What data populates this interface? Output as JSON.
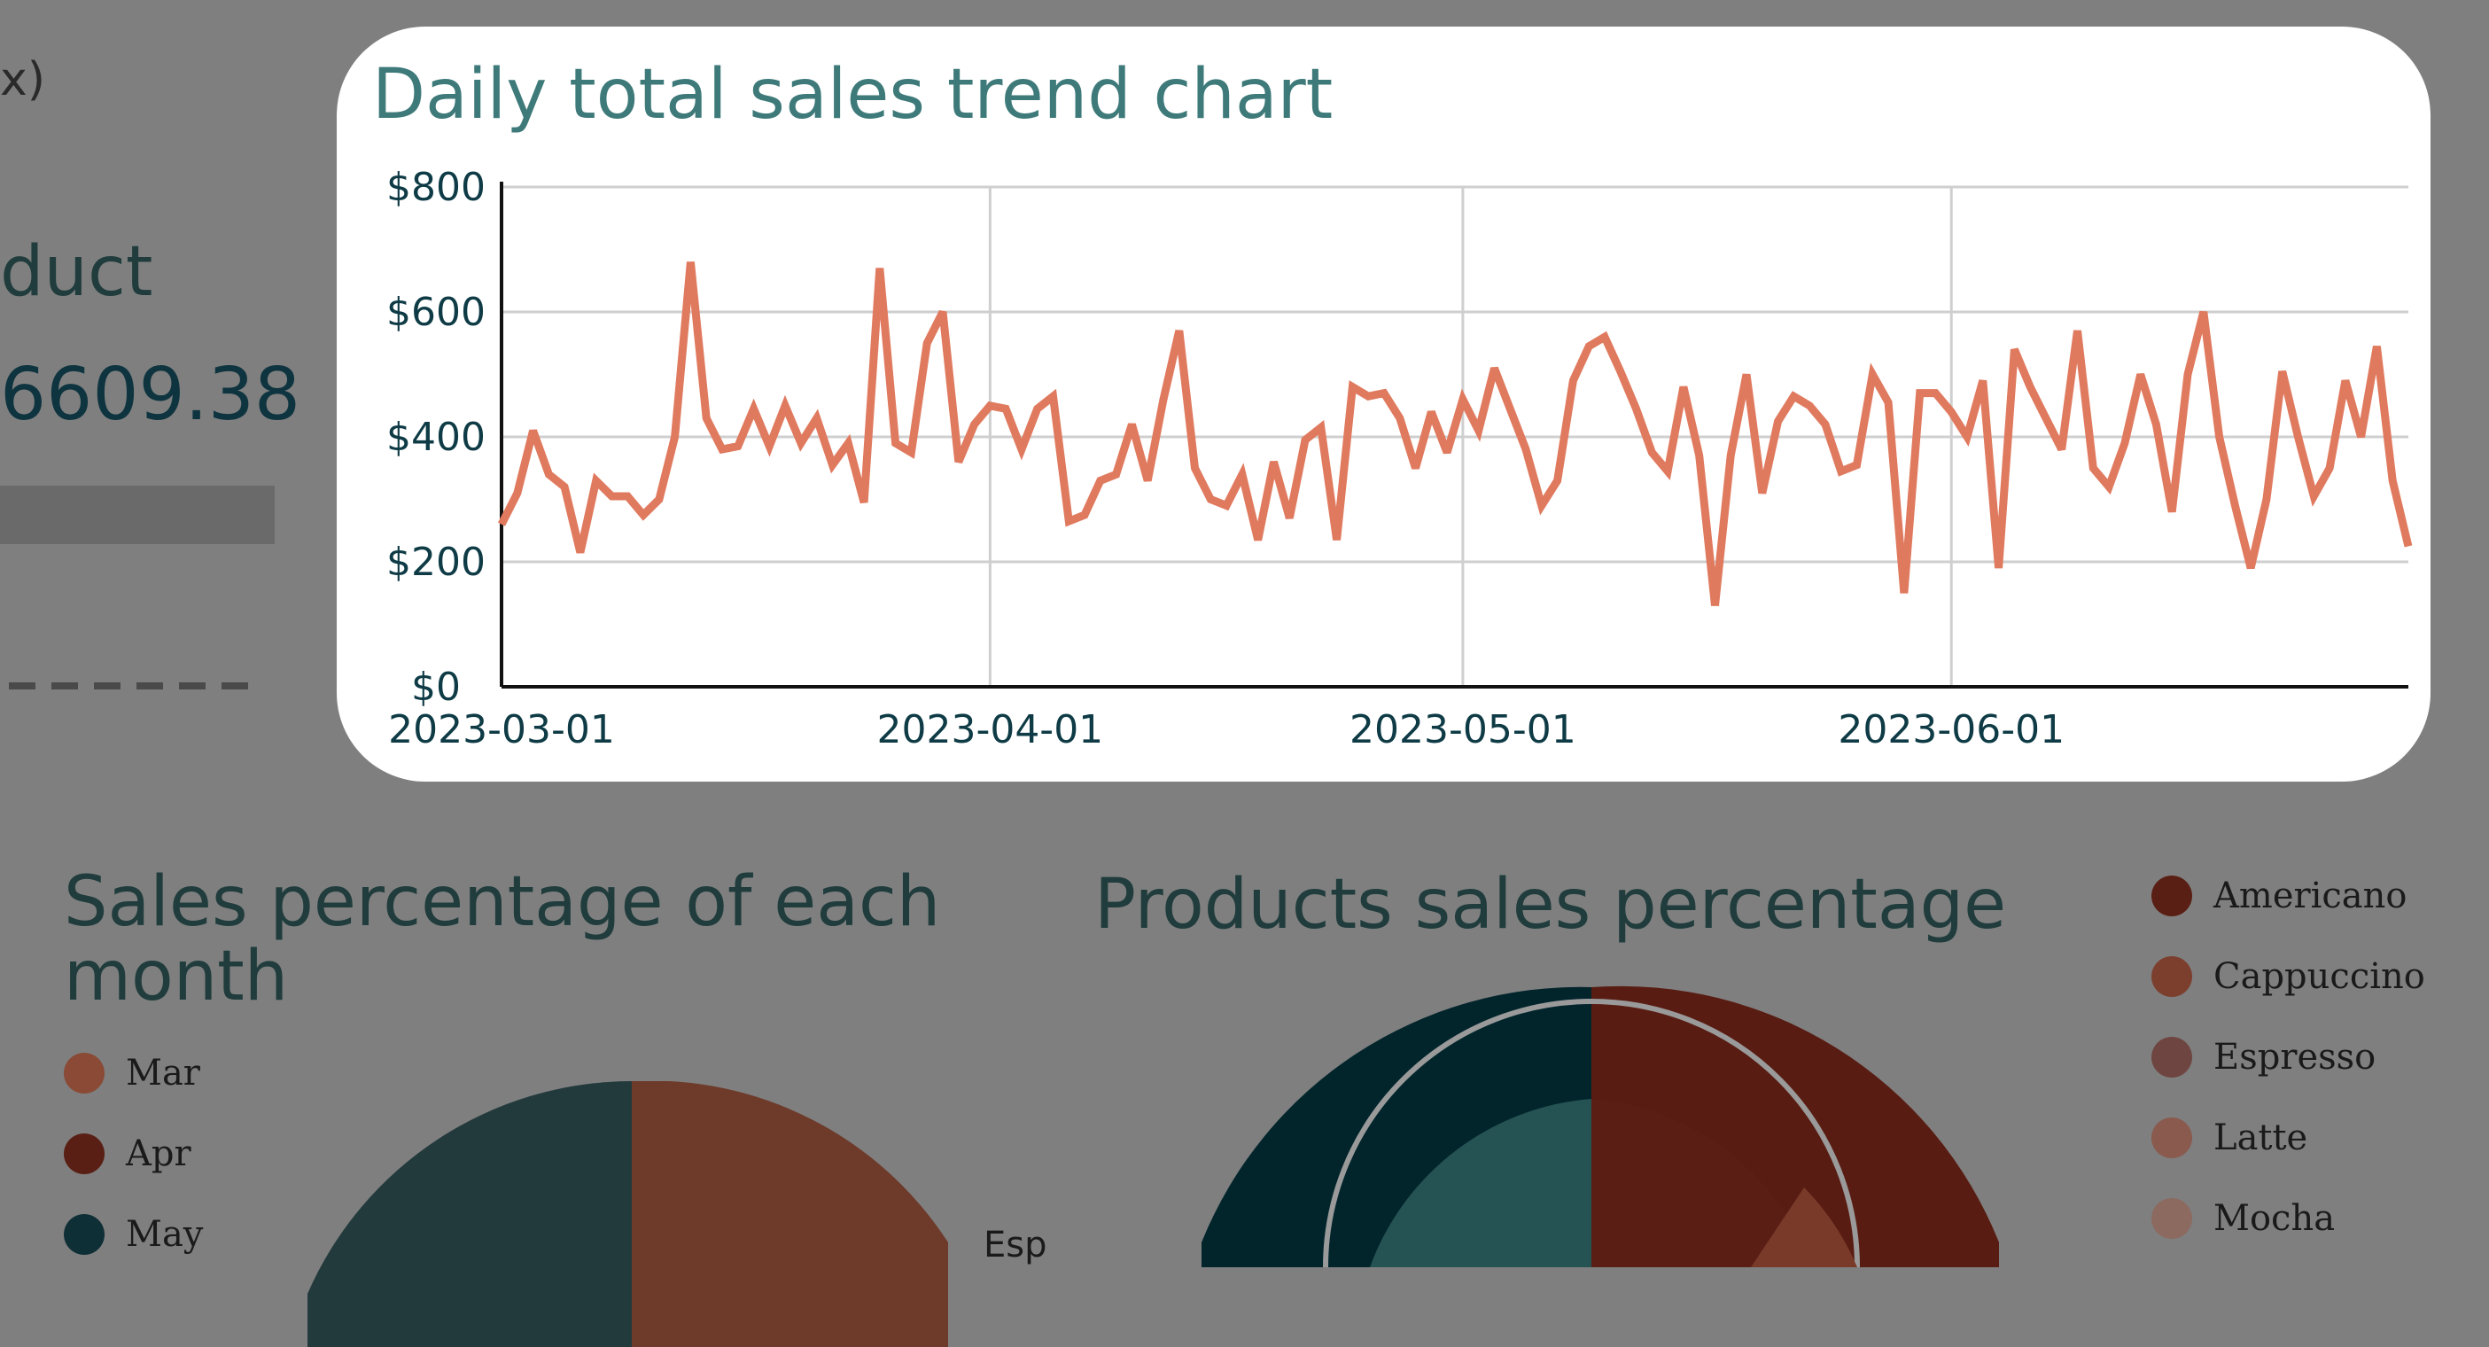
{
  "background": {
    "left_panel": {
      "top_label_fragment": "x)",
      "product_label_fragment": "duct",
      "value_fragment": "6609.38"
    },
    "month_pie": {
      "title": "Sales percentage of each month",
      "legend": [
        {
          "label": "Mar",
          "color": "#8a4a35"
        },
        {
          "label": "Apr",
          "color": "#5a1f14"
        },
        {
          "label": "May",
          "color": "#0f2f36"
        }
      ]
    },
    "product_pie": {
      "title": "Products sales percentage",
      "side_label_fragment": "Esp",
      "legend": [
        {
          "label": "Americano",
          "color": "#5a1f14"
        },
        {
          "label": "Cappuccino",
          "color": "#7c3f2e"
        },
        {
          "label": "Espresso",
          "color": "#6e4540"
        },
        {
          "label": "Latte",
          "color": "#8a5a4e"
        },
        {
          "label": "Mocha",
          "color": "#8c6a60"
        }
      ]
    }
  },
  "chart_data": {
    "type": "line",
    "title": "Daily total sales trend chart",
    "x_start": "2023-03-01",
    "x_end": "2023-06-30",
    "x_ticks": [
      "2023-03-01",
      "2023-04-01",
      "2023-05-01",
      "2023-06-01"
    ],
    "y_ticks": [
      "$0",
      "$200",
      "$400",
      "$600",
      "$800"
    ],
    "ylim": [
      0,
      800
    ],
    "grid": true,
    "line_color": "#e07a5f",
    "values": [
      260,
      310,
      410,
      340,
      320,
      215,
      330,
      305,
      305,
      275,
      300,
      400,
      680,
      430,
      380,
      385,
      445,
      385,
      450,
      390,
      430,
      355,
      390,
      295,
      670,
      390,
      375,
      550,
      600,
      360,
      420,
      450,
      445,
      380,
      445,
      465,
      265,
      275,
      330,
      340,
      420,
      330,
      460,
      570,
      350,
      300,
      290,
      340,
      235,
      360,
      270,
      395,
      415,
      235,
      480,
      465,
      470,
      430,
      350,
      440,
      375,
      460,
      410,
      510,
      445,
      380,
      290,
      330,
      490,
      545,
      560,
      505,
      445,
      375,
      345,
      480,
      370,
      130,
      370,
      500,
      310,
      425,
      465,
      450,
      420,
      345,
      355,
      500,
      455,
      150,
      470,
      470,
      440,
      400,
      490,
      190,
      540,
      480,
      430,
      380,
      570,
      350,
      320,
      390,
      500,
      420,
      280,
      500,
      600,
      400,
      290,
      190,
      300,
      505,
      400,
      305,
      350,
      490,
      400,
      545,
      330,
      225
    ]
  }
}
